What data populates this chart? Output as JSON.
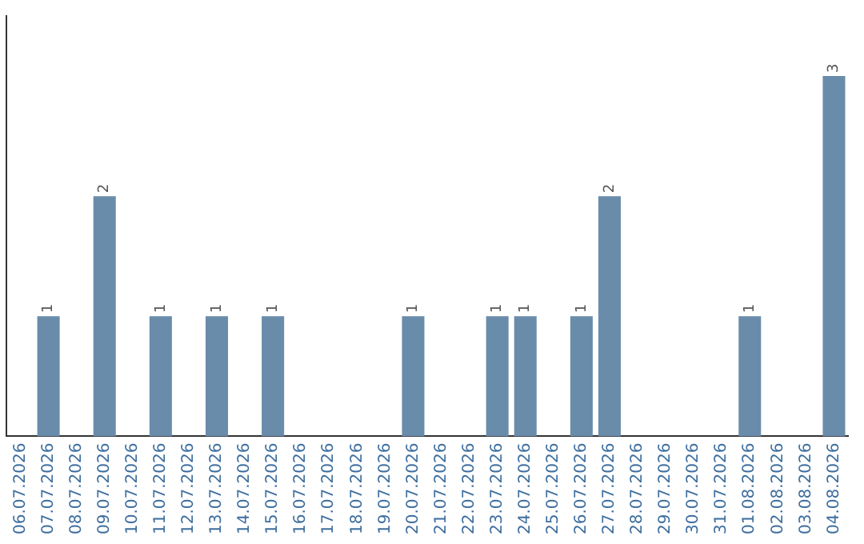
{
  "chart_data": {
    "type": "bar",
    "categories": [
      "06.07.2026",
      "07.07.2026",
      "08.07.2026",
      "09.07.2026",
      "10.07.2026",
      "11.07.2026",
      "12.07.2026",
      "13.07.2026",
      "14.07.2026",
      "15.07.2026",
      "16.07.2026",
      "17.07.2026",
      "18.07.2026",
      "19.07.2026",
      "20.07.2026",
      "21.07.2026",
      "22.07.2026",
      "23.07.2026",
      "24.07.2026",
      "25.07.2026",
      "26.07.2026",
      "27.07.2026",
      "28.07.2026",
      "29.07.2026",
      "30.07.2026",
      "31.07.2026",
      "01.08.2026",
      "02.08.2026",
      "03.08.2026",
      "04.08.2026"
    ],
    "values": [
      0,
      1,
      0,
      2,
      0,
      1,
      0,
      1,
      0,
      1,
      0,
      0,
      0,
      0,
      1,
      0,
      0,
      1,
      1,
      0,
      1,
      2,
      0,
      0,
      0,
      0,
      1,
      0,
      0,
      3
    ],
    "value_labels": [
      null,
      "1",
      null,
      "2",
      null,
      "1",
      null,
      "1",
      null,
      "1",
      null,
      null,
      null,
      null,
      "1",
      null,
      null,
      "1",
      "1",
      null,
      "1",
      "2",
      null,
      null,
      null,
      null,
      "1",
      null,
      null,
      "3"
    ],
    "color": "#6a8cab",
    "grid": false,
    "tick_labels": "x"
  }
}
